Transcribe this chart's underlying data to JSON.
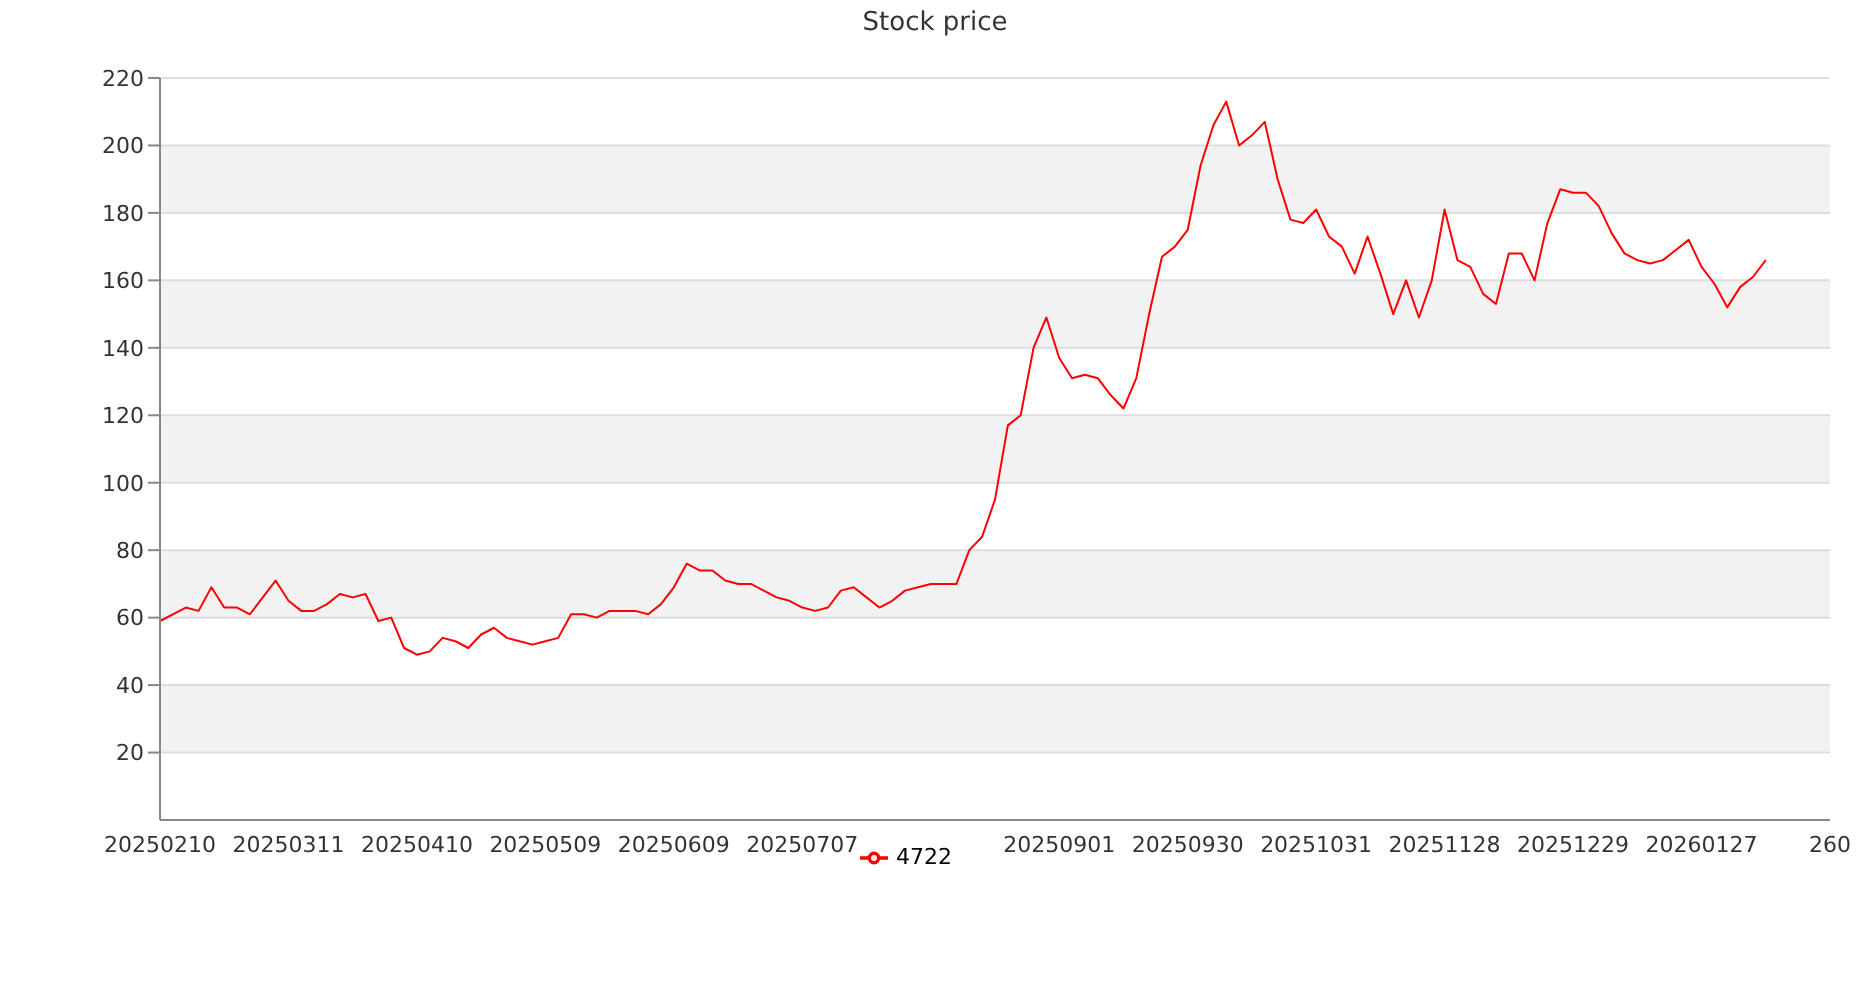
{
  "chart_data": {
    "type": "line",
    "title": "Stock price",
    "categories": [
      "20250210",
      null,
      null,
      null,
      null,
      null,
      null,
      null,
      null,
      null,
      "20250311",
      null,
      null,
      null,
      null,
      null,
      null,
      null,
      null,
      null,
      "20250410",
      null,
      null,
      null,
      null,
      null,
      null,
      null,
      null,
      null,
      "20250509",
      null,
      null,
      null,
      null,
      null,
      null,
      null,
      null,
      null,
      "20250609",
      null,
      null,
      null,
      null,
      null,
      null,
      null,
      null,
      null,
      "20250707",
      null,
      null,
      null,
      null,
      null,
      null,
      null,
      null,
      null,
      null,
      null,
      null,
      null,
      null,
      null,
      null,
      null,
      null,
      null,
      "20250901",
      null,
      null,
      null,
      null,
      null,
      null,
      null,
      null,
      null,
      "20250930",
      null,
      null,
      null,
      null,
      null,
      null,
      null,
      null,
      null,
      "20251031",
      null,
      null,
      null,
      null,
      null,
      null,
      null,
      null,
      null,
      "20251128",
      null,
      null,
      null,
      null,
      null,
      null,
      null,
      null,
      null,
      "20251229",
      null,
      null,
      null,
      null,
      null,
      null,
      null,
      null,
      null,
      "20260127",
      null,
      null,
      null,
      null,
      null,
      null,
      null,
      null,
      null,
      "260"
    ],
    "series": [
      {
        "name": "4722",
        "color": "#ff0000",
        "values": [
          59,
          61,
          63,
          62,
          69,
          63,
          63,
          61,
          66,
          71,
          65,
          62,
          62,
          64,
          67,
          66,
          67,
          59,
          60,
          51,
          49,
          50,
          54,
          53,
          51,
          55,
          57,
          54,
          53,
          52,
          53,
          54,
          61,
          61,
          60,
          62,
          62,
          62,
          61,
          64,
          69,
          76,
          74,
          74,
          71,
          70,
          70,
          68,
          66,
          65,
          63,
          62,
          63,
          68,
          69,
          66,
          63,
          65,
          68,
          69,
          70,
          70,
          70,
          80,
          84,
          95,
          117,
          120,
          140,
          149,
          137,
          131,
          132,
          131,
          126,
          122,
          131,
          150,
          167,
          170,
          175,
          194,
          206,
          213,
          200,
          203,
          207,
          190,
          178,
          177,
          181,
          173,
          170,
          162,
          173,
          162,
          150,
          160,
          149,
          160,
          181,
          166,
          164,
          156,
          153,
          168,
          168,
          160,
          177,
          187,
          186,
          186,
          182,
          174,
          168,
          166,
          165,
          166,
          169,
          172,
          164,
          159,
          152,
          158,
          161,
          166,
          null,
          null,
          null,
          null,
          null
        ]
      }
    ],
    "ylim": [
      0,
      220
    ],
    "yticks": [
      20,
      40,
      60,
      80,
      100,
      120,
      140,
      160,
      180,
      200,
      220
    ],
    "grid": "y",
    "legend": "bottom",
    "marker": "none",
    "line_style": "solid"
  }
}
